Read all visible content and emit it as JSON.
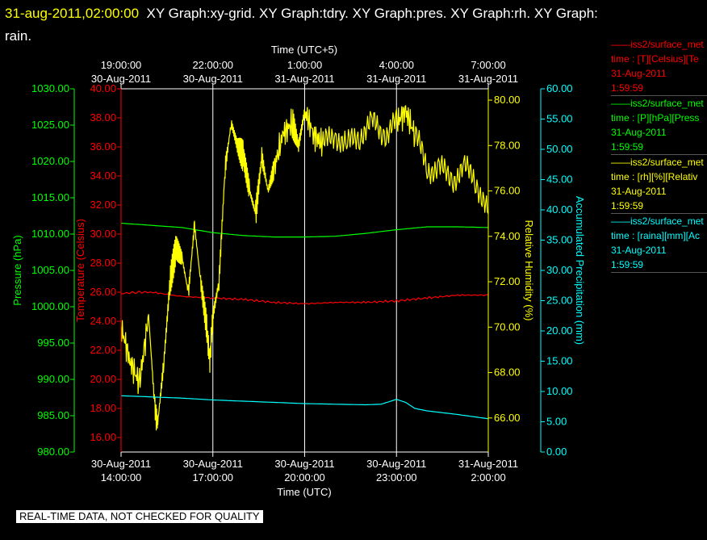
{
  "header": {
    "timestamp": "31-aug-2011,02:00:00",
    "graphs_line1": "XY Graph:xy-grid.  XY Graph:tdry.  XY Graph:pres.  XY Graph:rh.  XY Graph:",
    "graphs_line2": "rain."
  },
  "footer": {
    "notice": "REAL-TIME DATA, NOT CHECKED FOR QUALITY"
  },
  "legend": [
    {
      "line1": "——iss2/surface_met",
      "line2": "time : [T][Celsius][Te",
      "line3": "31-Aug-2011",
      "line4": "1:59:59",
      "color": "#ff0000"
    },
    {
      "line1": "——iss2/surface_met",
      "line2": "time : [P][hPa][Press",
      "line3": "31-Aug-2011",
      "line4": "1:59:59",
      "color": "#00ff00"
    },
    {
      "line1": "——iss2/surface_met",
      "line2": "time : [rh][%][Relativ",
      "line3": "31-Aug-2011",
      "line4": "1:59:59",
      "color": "#ffff00"
    },
    {
      "line1": "——iss2/surface_met",
      "line2": "time : [raina][mm][Ac",
      "line3": "31-Aug-2011",
      "line4": "1:59:59",
      "color": "#00ffff"
    }
  ],
  "chart_data": {
    "type": "line",
    "x_label_bottom": "Time (UTC)",
    "x_label_top": "Time (UTC+5)",
    "x_range_hours": [
      0,
      12
    ],
    "x_ticks_bottom": [
      {
        "hour": 0,
        "l1": "30-Aug-2011",
        "l2": "14:00:00"
      },
      {
        "hour": 3,
        "l1": "30-Aug-2011",
        "l2": "17:00:00"
      },
      {
        "hour": 6,
        "l1": "30-Aug-2011",
        "l2": "20:00:00"
      },
      {
        "hour": 9,
        "l1": "30-Aug-2011",
        "l2": "23:00:00"
      },
      {
        "hour": 12,
        "l1": "31-Aug-2011",
        "l2": "2:00:00"
      }
    ],
    "x_ticks_top": [
      {
        "hour": 0,
        "l1": "19:00:00",
        "l2": "30-Aug-2011"
      },
      {
        "hour": 3,
        "l1": "22:00:00",
        "l2": "30-Aug-2011"
      },
      {
        "hour": 6,
        "l1": "1:00:00",
        "l2": "31-Aug-2011"
      },
      {
        "hour": 9,
        "l1": "4:00:00",
        "l2": "31-Aug-2011"
      },
      {
        "hour": 12,
        "l1": "7:00:00",
        "l2": "31-Aug-2011"
      }
    ],
    "axes": {
      "pressure": {
        "label": "Pressure (hPa)",
        "range": [
          980,
          1030
        ],
        "step": 5,
        "color": "#00ff00",
        "ticks": [
          "980.00",
          "985.00",
          "990.00",
          "995.00",
          "1000.00",
          "1005.00",
          "1010.00",
          "1015.00",
          "1020.00",
          "1025.00",
          "1030.00"
        ]
      },
      "temperature": {
        "label": "Temperature (Celsius)",
        "range": [
          15,
          40
        ],
        "color": "#ff0000",
        "ticks": [
          "16.00",
          "18.00",
          "20.00",
          "22.00",
          "24.00",
          "26.00",
          "28.00",
          "30.00",
          "32.00",
          "34.00",
          "36.00",
          "38.00",
          "40.00"
        ]
      },
      "rh": {
        "label": "Relative Humidity (%)",
        "range": [
          64.5,
          80.5
        ],
        "color": "#ffff00",
        "ticks": [
          "66.00",
          "68.00",
          "70.00",
          "72.00",
          "74.00",
          "76.00",
          "78.00",
          "80.00"
        ]
      },
      "precip": {
        "label": "Accumulated Precipitation (mm)",
        "range": [
          0,
          60
        ],
        "color": "#00ffff",
        "ticks": [
          "0.00",
          "5.00",
          "10.00",
          "15.00",
          "20.00",
          "25.00",
          "30.00",
          "35.00",
          "40.00",
          "45.00",
          "50.00",
          "55.00",
          "60.00"
        ]
      }
    },
    "series": [
      {
        "name": "T",
        "axis": "temperature",
        "color": "#ff0000",
        "x": [
          0,
          0.5,
          1,
          2,
          3,
          4,
          5,
          6,
          7,
          8,
          9,
          10,
          11,
          12
        ],
        "y": [
          25.9,
          26.0,
          26.0,
          25.7,
          25.6,
          25.5,
          25.3,
          25.2,
          25.3,
          25.3,
          25.4,
          25.6,
          25.8,
          25.8
        ]
      },
      {
        "name": "P",
        "axis": "pressure",
        "color": "#00ff00",
        "x": [
          0,
          1,
          2,
          3,
          4,
          5,
          6,
          7,
          8,
          9,
          10,
          11,
          12
        ],
        "y": [
          1011.5,
          1011.2,
          1010.9,
          1010.2,
          1009.8,
          1009.6,
          1009.6,
          1009.7,
          1010.1,
          1010.6,
          1011.0,
          1011.0,
          1010.9
        ]
      },
      {
        "name": "rh",
        "axis": "rh",
        "color": "#ffff00",
        "x": [
          0,
          0.3,
          0.6,
          0.9,
          1.1,
          1.2,
          1.4,
          1.6,
          1.8,
          2.0,
          2.2,
          2.4,
          2.6,
          2.8,
          2.9,
          3.0,
          3.2,
          3.4,
          3.6,
          3.8,
          4.0,
          4.2,
          4.4,
          4.6,
          4.8,
          5.0,
          5.3,
          5.6,
          5.8,
          6.0,
          6.3,
          6.6,
          7.0,
          7.4,
          7.8,
          8.2,
          8.6,
          9.0,
          9.3,
          9.6,
          10.0,
          10.4,
          10.8,
          11.2,
          11.6,
          12.0
        ],
        "y": [
          70.0,
          68.5,
          67.5,
          70.5,
          66.5,
          65.8,
          68.5,
          72.0,
          73.5,
          73.0,
          71.5,
          74.5,
          72.0,
          70.0,
          68.5,
          70.5,
          72.0,
          77.0,
          79.0,
          78.0,
          77.5,
          76.0,
          75.0,
          77.5,
          76.0,
          77.0,
          78.5,
          79.0,
          78.0,
          79.5,
          78.5,
          78.0,
          78.5,
          78.0,
          78.5,
          79.0,
          78.5,
          79.0,
          79.5,
          78.5,
          77.0,
          77.0,
          76.5,
          77.0,
          76.5,
          75.0
        ]
      },
      {
        "name": "raina",
        "axis": "precip",
        "color": "#00ffff",
        "x": [
          0,
          1,
          2,
          3,
          4,
          5,
          6,
          7,
          8,
          8.5,
          9,
          9.3,
          9.6,
          10,
          11,
          12
        ],
        "y": [
          9.3,
          9.1,
          8.9,
          8.6,
          8.4,
          8.2,
          8.0,
          7.9,
          7.8,
          7.9,
          8.7,
          8.2,
          7.2,
          6.8,
          6.2,
          5.5
        ]
      }
    ]
  }
}
